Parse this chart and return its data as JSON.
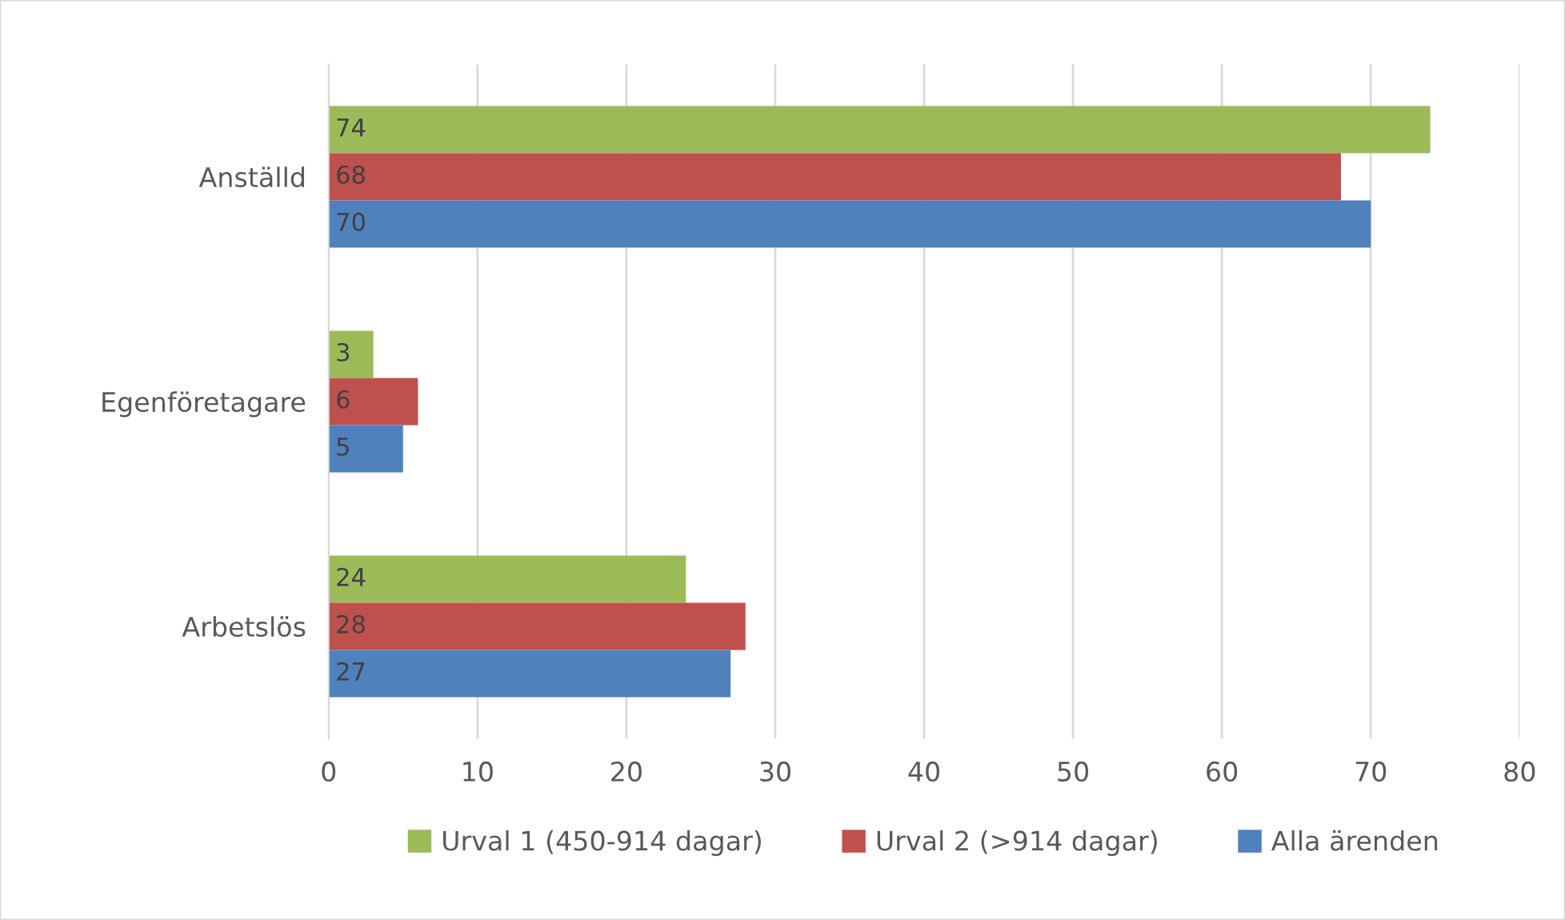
{
  "chart_data": {
    "type": "bar",
    "orientation": "horizontal",
    "categories": [
      "Anställd",
      "Egenföretagare",
      "Arbetslös"
    ],
    "series": [
      {
        "name": "Urval 1 (450-914 dagar)",
        "color": "#9bbb59",
        "values": [
          74,
          3,
          24
        ]
      },
      {
        "name": "Urval 2 (>914 dagar)",
        "color": "#c0504d",
        "values": [
          68,
          6,
          28
        ]
      },
      {
        "name": "Alla ärenden",
        "color": "#4f81bd",
        "values": [
          70,
          5,
          27
        ]
      }
    ],
    "xlim": [
      0,
      80
    ],
    "xticks": [
      0,
      10,
      20,
      30,
      40,
      50,
      60,
      70,
      80
    ],
    "grid": "x",
    "legend": "bottom",
    "data_labels": true
  }
}
